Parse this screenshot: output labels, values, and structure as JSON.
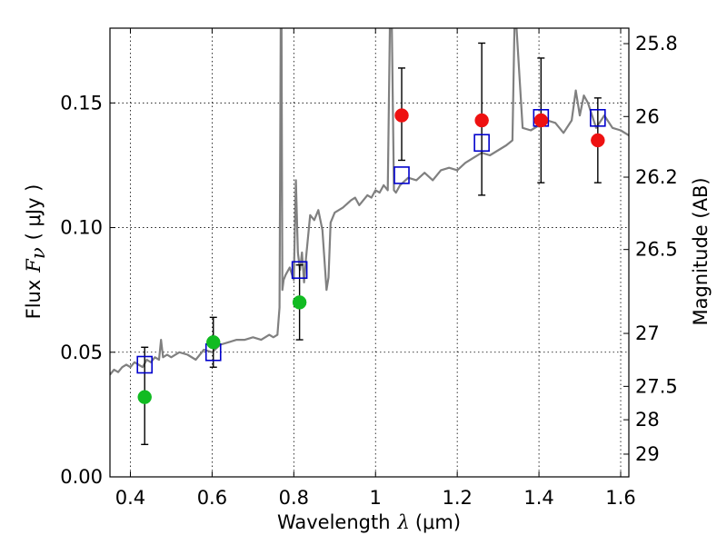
{
  "chart_data": {
    "type": "scatter",
    "xlabel_prefix": "Wavelength",
    "xlabel_symbol": "λ",
    "xlabel_unit": "(μm)",
    "ylabel_prefix": "Flux",
    "ylabel_symbol": "F",
    "ylabel_sub": "ν",
    "ylabel_unit": "( μJy )",
    "y2label": "Magnitude (AB)",
    "xlim": [
      0.35,
      1.62
    ],
    "ylim": [
      0.0,
      0.18
    ],
    "grid": true,
    "x_ticks": [
      0.4,
      0.6,
      0.8,
      1.0,
      1.2,
      1.4,
      1.6
    ],
    "x_tick_labels": [
      "0.4",
      "0.6",
      "0.8",
      "1",
      "1.2",
      "1.4",
      "1.6"
    ],
    "y_ticks": [
      0.0,
      0.05,
      0.1,
      0.15
    ],
    "y_tick_labels": [
      "0.00",
      "0.05",
      "0.10",
      "0.15"
    ],
    "y2_ticks": [
      {
        "label": "25.8",
        "mag": 25.8
      },
      {
        "label": "26",
        "mag": 26.0
      },
      {
        "label": "26.2",
        "mag": 26.2
      },
      {
        "label": "26.5",
        "mag": 26.5
      },
      {
        "label": "27",
        "mag": 27.0
      },
      {
        "label": "27.5",
        "mag": 27.5
      },
      {
        "label": "28",
        "mag": 28.0
      },
      {
        "label": "29",
        "mag": 29.0
      }
    ],
    "colors": {
      "model": "#808080",
      "green": "#11bb22",
      "red": "#ee1111",
      "squares": "#0000cc",
      "errorbar": "#000000",
      "grid": "#000000"
    },
    "series": [
      {
        "name": "model-spectrum",
        "kind": "line",
        "x": [
          0.35,
          0.36,
          0.37,
          0.38,
          0.39,
          0.4,
          0.41,
          0.42,
          0.43,
          0.44,
          0.45,
          0.46,
          0.47,
          0.475,
          0.48,
          0.49,
          0.5,
          0.52,
          0.54,
          0.56,
          0.58,
          0.6,
          0.62,
          0.64,
          0.66,
          0.68,
          0.7,
          0.72,
          0.74,
          0.75,
          0.76,
          0.765,
          0.768,
          0.77,
          0.772,
          0.775,
          0.78,
          0.79,
          0.8,
          0.805,
          0.81,
          0.815,
          0.82,
          0.825,
          0.83,
          0.84,
          0.85,
          0.86,
          0.87,
          0.88,
          0.885,
          0.89,
          0.9,
          0.92,
          0.94,
          0.95,
          0.96,
          0.97,
          0.98,
          0.99,
          1.0,
          1.01,
          1.02,
          1.03,
          1.035,
          1.04,
          1.045,
          1.05,
          1.06,
          1.08,
          1.1,
          1.12,
          1.14,
          1.16,
          1.18,
          1.2,
          1.22,
          1.24,
          1.26,
          1.28,
          1.3,
          1.32,
          1.335,
          1.34,
          1.345,
          1.36,
          1.38,
          1.4,
          1.42,
          1.44,
          1.46,
          1.48,
          1.49,
          1.5,
          1.51,
          1.52,
          1.54,
          1.56,
          1.58,
          1.6,
          1.62
        ],
        "y": [
          0.041,
          0.043,
          0.042,
          0.044,
          0.045,
          0.044,
          0.046,
          0.045,
          0.044,
          0.047,
          0.046,
          0.048,
          0.047,
          0.055,
          0.048,
          0.049,
          0.048,
          0.05,
          0.049,
          0.047,
          0.051,
          0.05,
          0.053,
          0.054,
          0.055,
          0.055,
          0.056,
          0.055,
          0.057,
          0.056,
          0.057,
          0.068,
          0.18,
          0.18,
          0.075,
          0.079,
          0.081,
          0.084,
          0.079,
          0.119,
          0.09,
          0.083,
          0.09,
          0.078,
          0.088,
          0.105,
          0.103,
          0.107,
          0.099,
          0.075,
          0.08,
          0.102,
          0.106,
          0.108,
          0.111,
          0.112,
          0.109,
          0.111,
          0.113,
          0.112,
          0.115,
          0.114,
          0.117,
          0.115,
          0.18,
          0.18,
          0.115,
          0.114,
          0.117,
          0.12,
          0.119,
          0.122,
          0.119,
          0.123,
          0.124,
          0.123,
          0.126,
          0.128,
          0.13,
          0.129,
          0.131,
          0.133,
          0.135,
          0.18,
          0.18,
          0.14,
          0.139,
          0.141,
          0.143,
          0.142,
          0.138,
          0.143,
          0.155,
          0.145,
          0.153,
          0.15,
          0.14,
          0.145,
          0.14,
          0.139,
          0.137
        ]
      },
      {
        "name": "green-points",
        "kind": "points",
        "x": [
          0.435,
          0.603,
          0.814
        ],
        "y": [
          0.032,
          0.054,
          0.07
        ],
        "err_lo": [
          0.013,
          0.044,
          0.055
        ],
        "err_hi": [
          0.052,
          0.064,
          0.085
        ]
      },
      {
        "name": "red-points",
        "kind": "points",
        "x": [
          1.064,
          1.26,
          1.405,
          1.544
        ],
        "y": [
          0.145,
          0.143,
          0.143,
          0.135
        ],
        "err_lo": [
          0.127,
          0.113,
          0.118,
          0.118
        ],
        "err_hi": [
          0.164,
          0.174,
          0.168,
          0.152
        ]
      },
      {
        "name": "model-squares",
        "kind": "squares",
        "x": [
          0.435,
          0.603,
          0.814,
          1.064,
          1.26,
          1.405,
          1.544
        ],
        "y": [
          0.045,
          0.05,
          0.083,
          0.121,
          0.134,
          0.144,
          0.144
        ]
      }
    ]
  }
}
